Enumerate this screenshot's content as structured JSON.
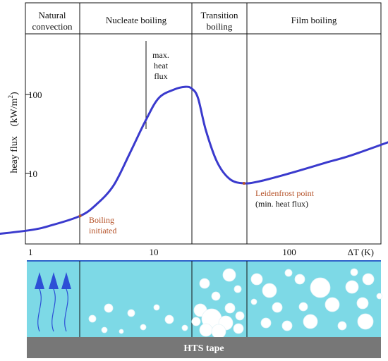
{
  "regions": [
    {
      "id": "natural",
      "lines": [
        "Natural",
        "convection"
      ]
    },
    {
      "id": "nucleate",
      "lines": [
        "Nucleate boiling"
      ]
    },
    {
      "id": "transition",
      "lines": [
        "Transition",
        "boiling"
      ]
    },
    {
      "id": "film",
      "lines": [
        "Film boiling"
      ]
    }
  ],
  "axis": {
    "y_label": "heay flux　(kW/m",
    "y_label_sup": "2",
    "y_label_close": ")",
    "x_label": "ΔT (K)",
    "y_ticks": [
      "100",
      "10"
    ],
    "x_ticks": [
      "1",
      "10",
      "100"
    ]
  },
  "annotations": {
    "max_heat_flux": [
      "max.",
      "heat",
      "flux"
    ],
    "boiling_initiated": [
      "Boiling",
      "initiated"
    ],
    "leidenfrost": [
      "Leidenfrost point"
    ],
    "leidenfrost_sub": [
      "(min. heat flux)"
    ]
  },
  "tape_label": "HTS tape",
  "colors": {
    "curve": "#3a3acd",
    "liquid": "#7dd9e6",
    "tape": "#777777",
    "arrow": "#2d4fd6",
    "accent_red": "#b5532a",
    "liquid_border": "#2f62c9"
  },
  "chart_data": {
    "type": "line",
    "x_scale": "log",
    "y_scale": "log",
    "xlabel": "ΔT (K)",
    "ylabel": "heay flux (kW/m2)",
    "series": [
      {
        "x": [
          0.4,
          1.0,
          1.5,
          2.5,
          3.3,
          4.5,
          6.0,
          8.0,
          10.0,
          13.0,
          16.0,
          18.0,
          20.0,
          23.0,
          28.0,
          35.0,
          45.0,
          60.0,
          100.0,
          200.0,
          300.0,
          700.0
        ],
        "y": [
          1.6,
          1.9,
          2.2,
          2.9,
          4.0,
          7.0,
          18.0,
          48.0,
          90.0,
          115.0,
          125.0,
          118.0,
          90.0,
          35.0,
          14.0,
          8.5,
          7.5,
          8.0,
          10.0,
          14.0,
          17.0,
          28.0
        ]
      }
    ],
    "boundaries_dT": [
      2.5,
      21.0,
      45.0
    ],
    "points": [
      {
        "name": "Boiling initiated",
        "x": 2.5,
        "y": 2.9
      },
      {
        "name": "Leidenfrost point",
        "x": 45.0,
        "y": 7.5
      }
    ]
  }
}
